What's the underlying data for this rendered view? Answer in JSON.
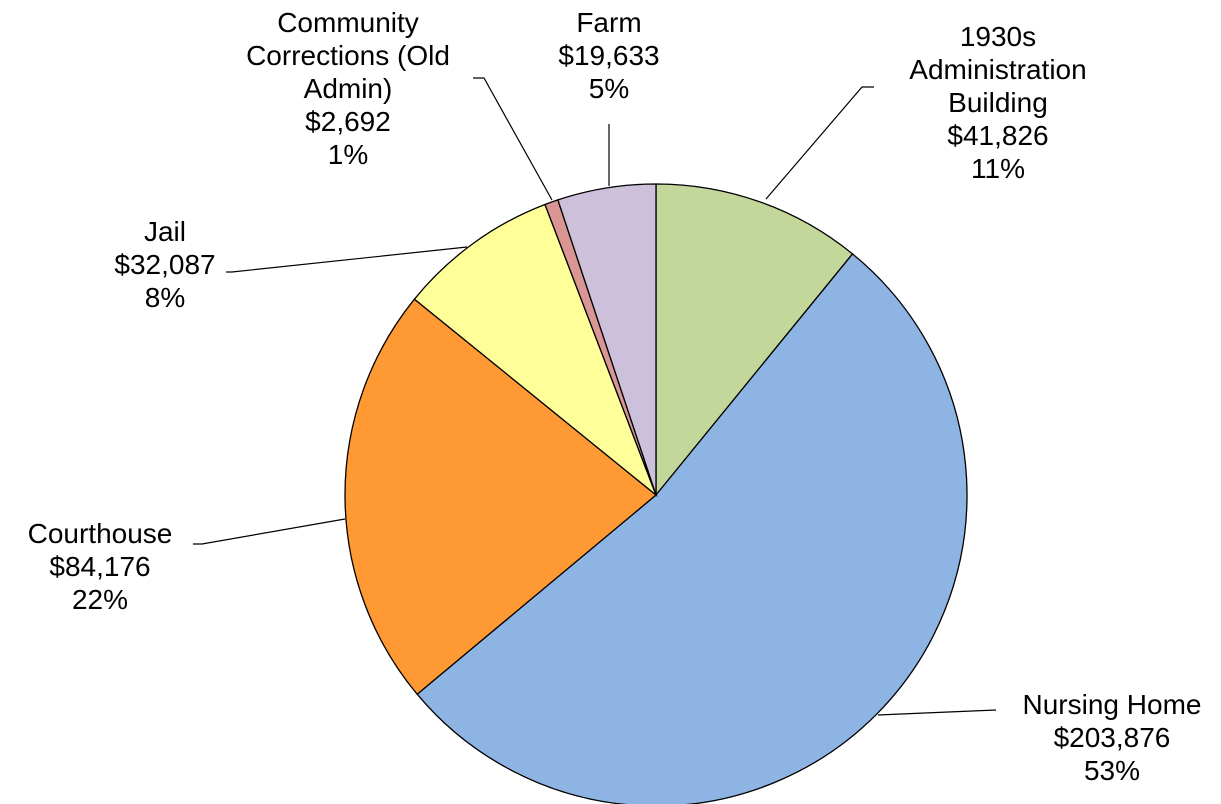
{
  "chart_data": {
    "type": "pie",
    "start_angle_deg": 0,
    "direction": "clockwise",
    "slices": [
      {
        "lines": [
          "1930s",
          "Administration",
          "Building"
        ],
        "value": "$41,826",
        "percent": "11%",
        "amount": 41826,
        "color": "#C4D79B"
      },
      {
        "lines": [
          "Nursing Home"
        ],
        "value": "$203,876",
        "percent": "53%",
        "amount": 203876,
        "color": "#8EB4E3"
      },
      {
        "lines": [
          "Courthouse"
        ],
        "value": "$84,176",
        "percent": "22%",
        "amount": 84176,
        "color": "#FF9933"
      },
      {
        "lines": [
          "Jail"
        ],
        "value": "$32,087",
        "percent": "8%",
        "amount": 32087,
        "color": "#FFFF99"
      },
      {
        "lines": [
          "Community",
          "Corrections (Old",
          "Admin)"
        ],
        "value": "$2,692",
        "percent": "1%",
        "amount": 2692,
        "color": "#D99694"
      },
      {
        "lines": [
          "Farm"
        ],
        "value": "$19,633",
        "percent": "5%",
        "amount": 19633,
        "color": "#CCC0DA"
      }
    ]
  }
}
